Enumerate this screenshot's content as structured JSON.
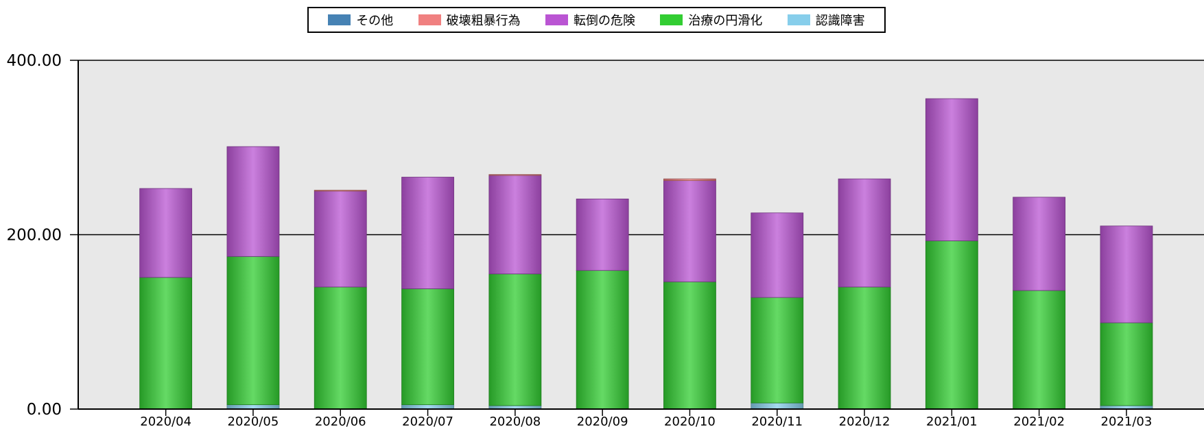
{
  "chart_data": {
    "type": "bar",
    "stacked": true,
    "categories": [
      "2020/04",
      "2020/05",
      "2020/06",
      "2020/07",
      "2020/08",
      "2020/09",
      "2020/10",
      "2020/11",
      "2020/12",
      "2021/01",
      "2021/02",
      "2021/03"
    ],
    "series": [
      {
        "name": "その他",
        "color": "#4682b4",
        "values": [
          0,
          0,
          0,
          0,
          0,
          0,
          0,
          0,
          0,
          0,
          0,
          0
        ]
      },
      {
        "name": "破壊粗暴行為",
        "color": "#f08080",
        "values": [
          0,
          0,
          1,
          0,
          1,
          0,
          2,
          0,
          0,
          0,
          0,
          0
        ]
      },
      {
        "name": "転倒の危険",
        "color": "#ba55d3",
        "values": [
          102,
          126,
          110,
          128,
          113,
          82,
          116,
          97,
          124,
          163,
          107,
          111
        ]
      },
      {
        "name": "治療の円滑化",
        "color": "#32cd32",
        "values": [
          151,
          170,
          140,
          133,
          151,
          159,
          146,
          121,
          140,
          193,
          136,
          95
        ]
      },
      {
        "name": "認識障害",
        "color": "#87ceeb",
        "values": [
          0,
          5,
          0,
          5,
          4,
          0,
          0,
          7,
          0,
          0,
          0,
          4
        ]
      }
    ],
    "stack_order_bottom_to_top": [
      "認識障害",
      "治療の円滑化",
      "転倒の危険",
      "破壊粗暴行為",
      "その他"
    ],
    "y_ticks": [
      "0.00",
      "200.00",
      "400.00"
    ],
    "y_tick_values": [
      0,
      200,
      400
    ],
    "ylim": [
      0,
      400
    ],
    "grid": true,
    "legend_position": "top-center",
    "plot_background": "#e8e8e8"
  }
}
